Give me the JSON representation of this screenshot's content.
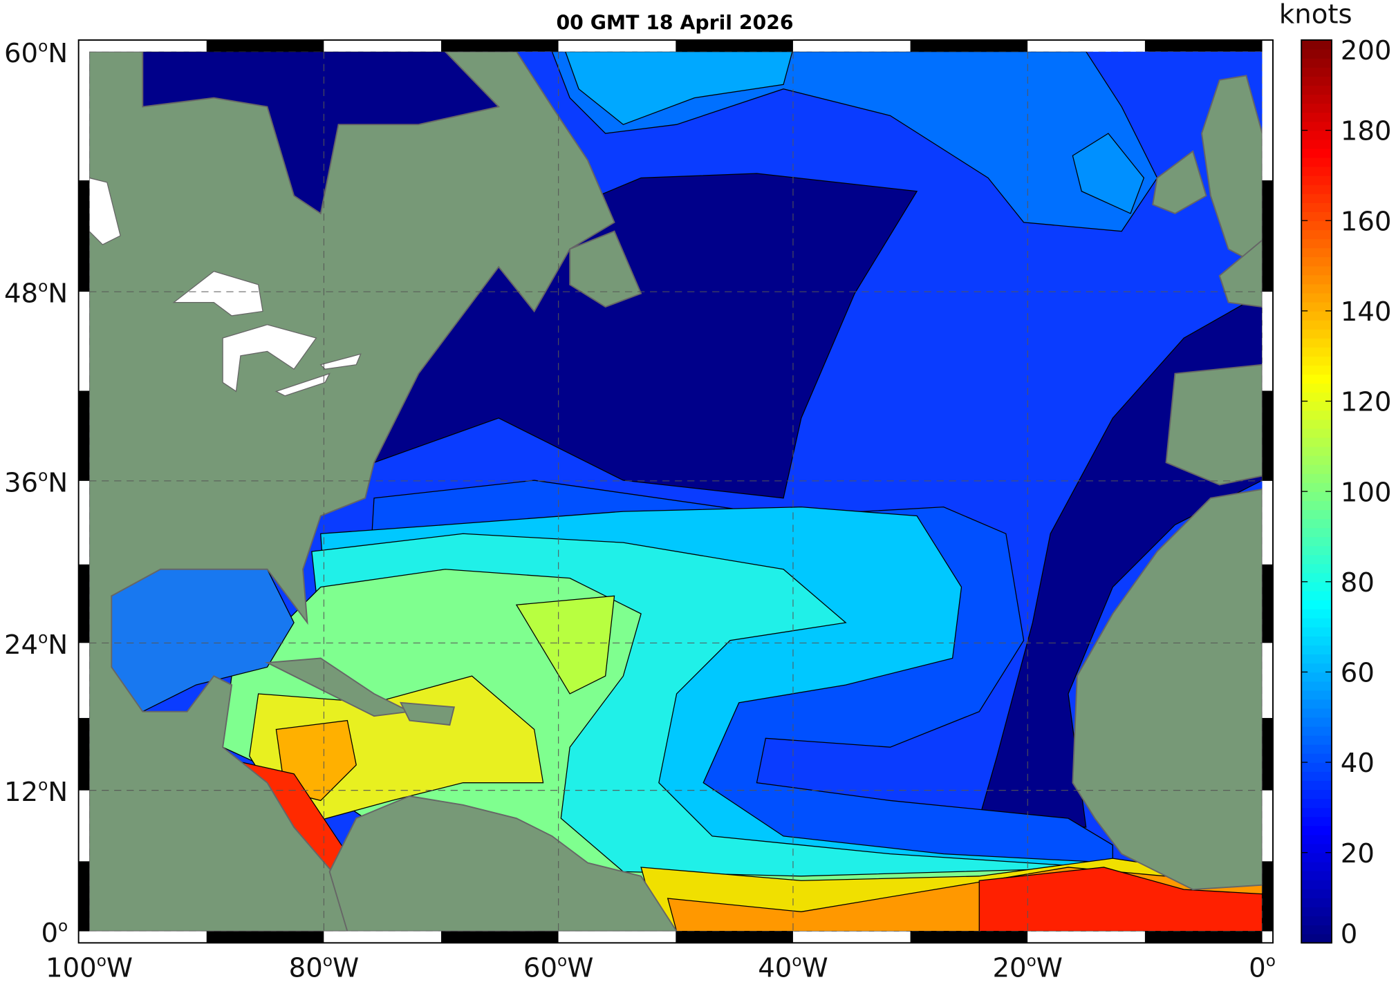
{
  "title": "00 GMT 18 April 2026",
  "colorbar": {
    "label": "knots",
    "min": 0,
    "max": 200,
    "ticks": [
      "0",
      "20",
      "40",
      "60",
      "80",
      "100",
      "120",
      "140",
      "160",
      "180",
      "200"
    ],
    "colormap": "jet",
    "colors": [
      "#00007f",
      "#0000ff",
      "#0060ff",
      "#00bfff",
      "#1fffdf",
      "#7fff7f",
      "#dfff1f",
      "#ffbf00",
      "#ff6000",
      "#ff1000",
      "#7f0000"
    ]
  },
  "axes": {
    "lat_labels": [
      {
        "value": 60,
        "text": "60",
        "suffix": "N"
      },
      {
        "value": 48,
        "text": "48",
        "suffix": "N"
      },
      {
        "value": 36,
        "text": "36",
        "suffix": "N"
      },
      {
        "value": 24,
        "text": "24",
        "suffix": "N"
      },
      {
        "value": 12,
        "text": "12",
        "suffix": "N"
      },
      {
        "value": 0,
        "text": "0",
        "suffix": ""
      }
    ],
    "lon_labels": [
      {
        "value": -100,
        "text": "100",
        "suffix": "W"
      },
      {
        "value": -80,
        "text": "80",
        "suffix": "W"
      },
      {
        "value": -60,
        "text": "60",
        "suffix": "W"
      },
      {
        "value": -40,
        "text": "40",
        "suffix": "W"
      },
      {
        "value": -20,
        "text": "20",
        "suffix": "W"
      },
      {
        "value": 0,
        "text": "0",
        "suffix": ""
      }
    ],
    "projection": "mercator",
    "lon_range": [
      -100,
      0
    ],
    "lat_range": [
      0,
      60
    ],
    "grid": true
  },
  "colors": {
    "land": "#779977",
    "lakes": "#ffffff"
  }
}
